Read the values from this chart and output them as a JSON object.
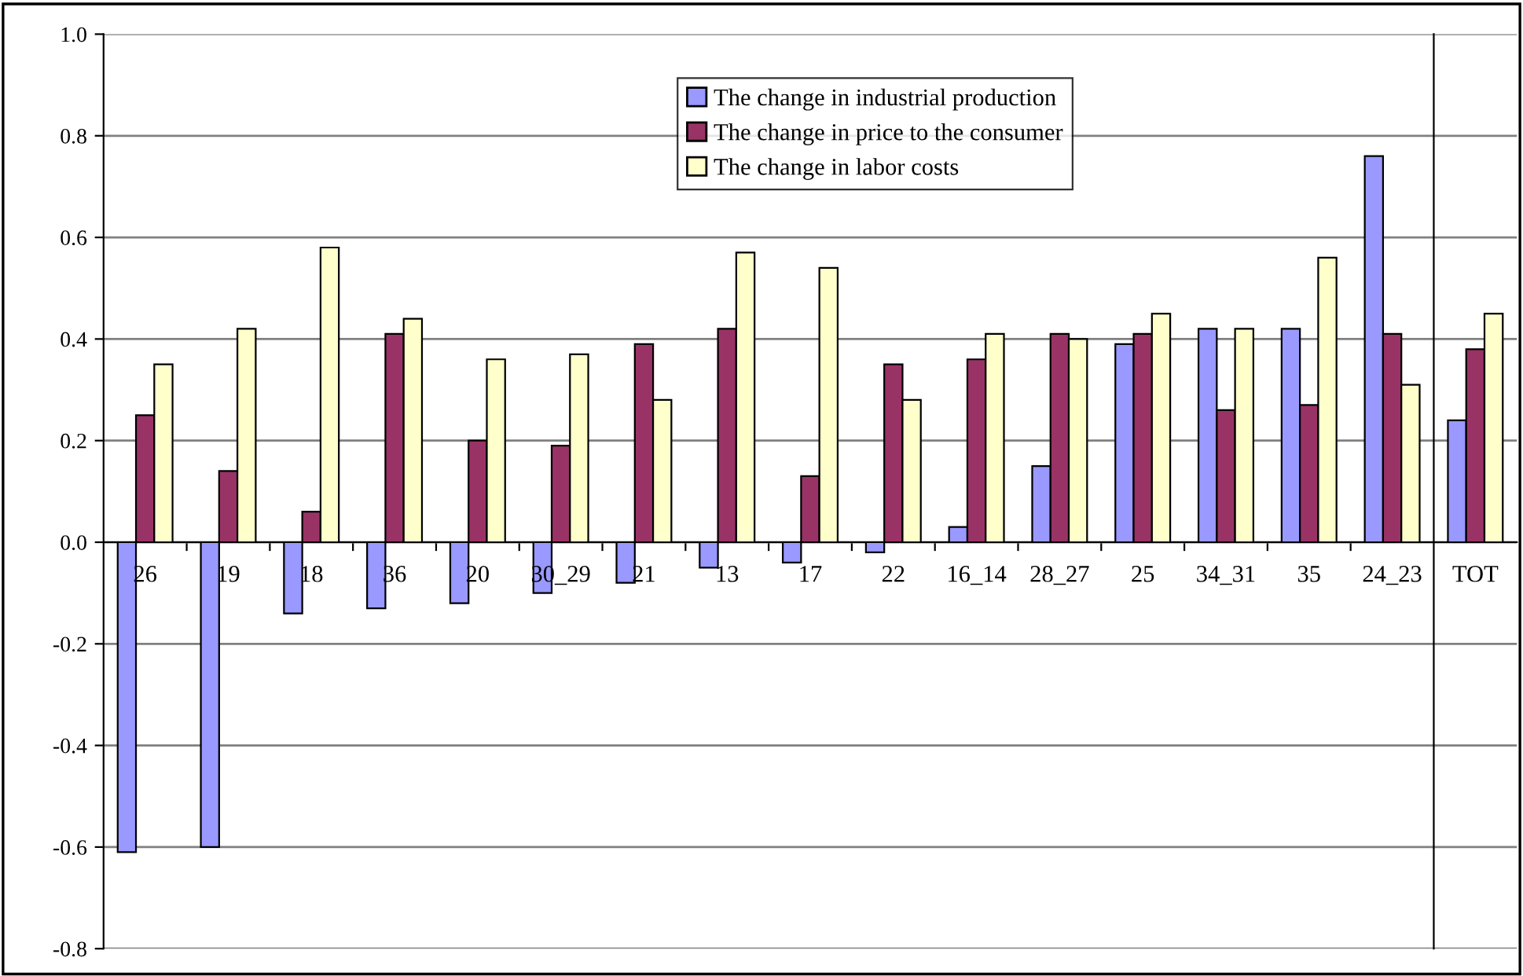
{
  "chart_data": [
    {
      "type": "bar",
      "categories": [
        "26",
        "19",
        "18",
        "36",
        "20",
        "30_29",
        "21",
        "13",
        "17",
        "22",
        "16_14",
        "28_27",
        "25",
        "34_31",
        "35",
        "24_23"
      ],
      "series": [
        {
          "name": "The change in industrial production",
          "color": "#9999ff",
          "values": [
            -0.61,
            -0.6,
            -0.14,
            -0.13,
            -0.12,
            -0.1,
            -0.08,
            -0.05,
            -0.04,
            -0.02,
            0.03,
            0.15,
            0.39,
            0.42,
            0.42,
            0.76
          ]
        },
        {
          "name": "The change in price to the consumer",
          "color": "#993366",
          "values": [
            0.25,
            0.14,
            0.06,
            0.41,
            0.2,
            0.19,
            0.39,
            0.42,
            0.13,
            0.35,
            0.36,
            0.41,
            0.41,
            0.26,
            0.27,
            0.41
          ]
        },
        {
          "name": "The change in labor costs",
          "color": "#ffffcc",
          "values": [
            0.35,
            0.42,
            0.58,
            0.44,
            0.36,
            0.37,
            0.28,
            0.57,
            0.54,
            0.28,
            0.41,
            0.4,
            0.45,
            0.42,
            0.56,
            0.31
          ]
        }
      ],
      "ylim": [
        -0.8,
        1.0
      ],
      "yticks": [
        {
          "value": -0.8,
          "label": "-0.8"
        },
        {
          "value": -0.6,
          "label": "-0.6"
        },
        {
          "value": -0.4,
          "label": "-0.4"
        },
        {
          "value": -0.2,
          "label": "-0.2"
        },
        {
          "value": 0,
          "label": "0.0"
        },
        {
          "value": 0.2,
          "label": "0.2"
        },
        {
          "value": 0.4,
          "label": "0.4"
        },
        {
          "value": 0.6,
          "label": "0.6"
        },
        {
          "value": 0.8,
          "label": "0.8"
        },
        {
          "value": 1.0,
          "label": "1.0"
        }
      ],
      "grid": "y",
      "legend": "top"
    },
    {
      "type": "bar",
      "categories": [
        "TOT"
      ],
      "series": [
        {
          "color": "#9999ff",
          "values": [
            0.24
          ]
        },
        {
          "color": "#993366",
          "values": [
            0.38
          ]
        },
        {
          "color": "#ffffcc",
          "values": [
            0.45
          ]
        }
      ],
      "ylim": [
        -0.8,
        1.0
      ],
      "grid": "y",
      "tick_labels": "x"
    }
  ]
}
